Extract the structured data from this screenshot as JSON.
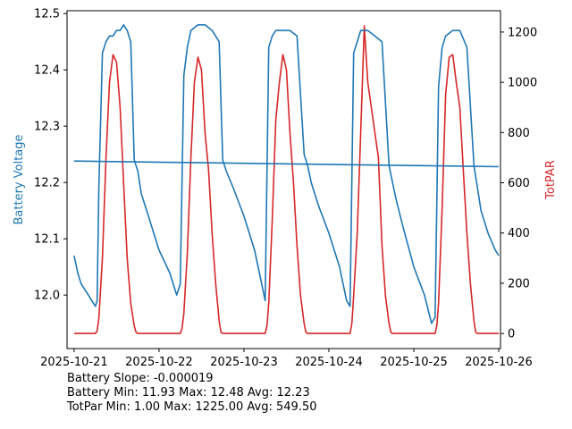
{
  "chart_data": {
    "type": "line",
    "x_range": [
      "2025-10-20T22:00",
      "2025-10-26T00:30"
    ],
    "x_ticks": [
      "2025-10-21",
      "2025-10-22",
      "2025-10-23",
      "2025-10-24",
      "2025-10-25",
      "2025-10-26"
    ],
    "left_axis": {
      "label": "Battery Voltage",
      "color": "#1f77b4",
      "ylim": [
        11.905,
        12.505
      ],
      "ticks": [
        12.0,
        12.1,
        12.2,
        12.3,
        12.4,
        12.5
      ],
      "tick_labels": [
        "12.0",
        "12.1",
        "12.2",
        "12.3",
        "12.4",
        "12.5"
      ]
    },
    "right_axis": {
      "label": "TotPAR",
      "color": "#d62728",
      "ylim": [
        -60,
        1285
      ],
      "ticks": [
        0,
        200,
        400,
        600,
        800,
        1000,
        1200
      ],
      "tick_labels": [
        "0",
        "200",
        "400",
        "600",
        "800",
        "1000",
        "1200"
      ]
    },
    "series": [
      {
        "name": "Battery Voltage",
        "axis": "left",
        "color": "#1f77b4",
        "x": [
          "2025-10-21T00:00",
          "2025-10-21T01:00",
          "2025-10-21T02:00",
          "2025-10-21T03:00",
          "2025-10-21T04:00",
          "2025-10-21T05:00",
          "2025-10-21T06:00",
          "2025-10-21T06:30",
          "2025-10-21T07:00",
          "2025-10-21T08:00",
          "2025-10-21T09:00",
          "2025-10-21T10:00",
          "2025-10-21T11:00",
          "2025-10-21T12:00",
          "2025-10-21T13:00",
          "2025-10-21T14:00",
          "2025-10-21T15:00",
          "2025-10-21T16:00",
          "2025-10-21T17:00",
          "2025-10-21T18:00",
          "2025-10-21T19:00",
          "2025-10-21T21:00",
          "2025-10-22T00:00",
          "2025-10-22T03:00",
          "2025-10-22T05:00",
          "2025-10-22T06:00",
          "2025-10-22T07:00",
          "2025-10-22T08:00",
          "2025-10-22T09:00",
          "2025-10-22T11:00",
          "2025-10-22T13:00",
          "2025-10-22T15:00",
          "2025-10-22T17:00",
          "2025-10-22T18:00",
          "2025-10-22T19:00",
          "2025-10-22T21:00",
          "2025-10-23T00:00",
          "2025-10-23T03:00",
          "2025-10-23T05:00",
          "2025-10-23T06:00",
          "2025-10-23T07:00",
          "2025-10-23T08:00",
          "2025-10-23T09:00",
          "2025-10-23T11:00",
          "2025-10-23T13:00",
          "2025-10-23T15:00",
          "2025-10-23T17:00",
          "2025-10-23T18:00",
          "2025-10-23T19:00",
          "2025-10-23T21:00",
          "2025-10-24T00:00",
          "2025-10-24T03:00",
          "2025-10-24T05:00",
          "2025-10-24T06:00",
          "2025-10-24T07:00",
          "2025-10-24T08:00",
          "2025-10-24T09:00",
          "2025-10-24T11:00",
          "2025-10-24T13:00",
          "2025-10-24T15:00",
          "2025-10-24T17:00",
          "2025-10-24T18:00",
          "2025-10-24T19:00",
          "2025-10-24T21:00",
          "2025-10-25T00:00",
          "2025-10-25T03:00",
          "2025-10-25T05:00",
          "2025-10-25T06:00",
          "2025-10-25T07:00",
          "2025-10-25T08:00",
          "2025-10-25T09:00",
          "2025-10-25T11:00",
          "2025-10-25T13:00",
          "2025-10-25T15:00",
          "2025-10-25T17:00",
          "2025-10-25T18:00",
          "2025-10-25T19:00",
          "2025-10-25T21:00",
          "2025-10-25T23:00",
          "2025-10-26T00:00"
        ],
        "values": [
          12.07,
          12.04,
          12.02,
          12.01,
          12.0,
          11.99,
          11.98,
          11.99,
          12.19,
          12.43,
          12.45,
          12.46,
          12.46,
          12.47,
          12.47,
          12.48,
          12.47,
          12.45,
          12.24,
          12.22,
          12.18,
          12.14,
          12.08,
          12.04,
          12.0,
          12.02,
          12.39,
          12.44,
          12.47,
          12.48,
          12.48,
          12.47,
          12.45,
          12.24,
          12.22,
          12.19,
          12.14,
          12.08,
          12.02,
          11.99,
          12.44,
          12.46,
          12.47,
          12.47,
          12.47,
          12.46,
          12.25,
          12.23,
          12.2,
          12.16,
          12.11,
          12.05,
          11.99,
          11.98,
          12.43,
          12.45,
          12.47,
          12.47,
          12.46,
          12.45,
          12.23,
          12.2,
          12.17,
          12.12,
          12.05,
          12.0,
          11.95,
          11.96,
          12.37,
          12.44,
          12.46,
          12.47,
          12.47,
          12.44,
          12.23,
          12.19,
          12.15,
          12.11,
          12.08,
          12.07
        ]
      },
      {
        "name": "Battery Trend",
        "axis": "left",
        "color": "#1f77b4",
        "x": [
          "2025-10-21T00:00",
          "2025-10-26T00:00"
        ],
        "values": [
          12.238,
          12.228
        ]
      },
      {
        "name": "TotPAR",
        "axis": "right",
        "color": "#d62728",
        "x": [
          "2025-10-21T00:00",
          "2025-10-21T06:00",
          "2025-10-21T06:30",
          "2025-10-21T07:00",
          "2025-10-21T08:00",
          "2025-10-21T09:00",
          "2025-10-21T10:00",
          "2025-10-21T11:00",
          "2025-10-21T12:00",
          "2025-10-21T13:00",
          "2025-10-21T14:00",
          "2025-10-21T15:00",
          "2025-10-21T16:00",
          "2025-10-21T17:00",
          "2025-10-21T17:30",
          "2025-10-21T18:00",
          "2025-10-22T06:00",
          "2025-10-22T06:30",
          "2025-10-22T07:00",
          "2025-10-22T08:00",
          "2025-10-22T09:00",
          "2025-10-22T10:00",
          "2025-10-22T11:00",
          "2025-10-22T12:00",
          "2025-10-22T13:00",
          "2025-10-22T14:00",
          "2025-10-22T15:00",
          "2025-10-22T16:00",
          "2025-10-22T17:00",
          "2025-10-22T17:30",
          "2025-10-22T18:00",
          "2025-10-23T06:00",
          "2025-10-23T06:30",
          "2025-10-23T07:00",
          "2025-10-23T08:00",
          "2025-10-23T09:00",
          "2025-10-23T10:00",
          "2025-10-23T11:00",
          "2025-10-23T12:00",
          "2025-10-23T13:00",
          "2025-10-23T14:00",
          "2025-10-23T15:00",
          "2025-10-23T16:00",
          "2025-10-23T17:00",
          "2025-10-23T17:30",
          "2025-10-23T18:00",
          "2025-10-24T06:00",
          "2025-10-24T06:30",
          "2025-10-24T07:00",
          "2025-10-24T08:00",
          "2025-10-24T09:00",
          "2025-10-24T10:00",
          "2025-10-24T11:00",
          "2025-10-24T12:00",
          "2025-10-24T13:00",
          "2025-10-24T14:00",
          "2025-10-24T15:00",
          "2025-10-24T16:00",
          "2025-10-24T17:00",
          "2025-10-24T17:30",
          "2025-10-24T18:00",
          "2025-10-25T06:00",
          "2025-10-25T06:30",
          "2025-10-25T07:00",
          "2025-10-25T08:00",
          "2025-10-25T09:00",
          "2025-10-25T10:00",
          "2025-10-25T11:00",
          "2025-10-25T12:00",
          "2025-10-25T13:00",
          "2025-10-25T14:00",
          "2025-10-25T15:00",
          "2025-10-25T16:00",
          "2025-10-25T17:00",
          "2025-10-25T17:30",
          "2025-10-25T18:00",
          "2025-10-26T00:00"
        ],
        "values": [
          0,
          0,
          10,
          60,
          300,
          700,
          1000,
          1110,
          1080,
          900,
          600,
          300,
          120,
          30,
          5,
          0,
          0,
          20,
          80,
          320,
          700,
          1000,
          1100,
          1050,
          800,
          650,
          400,
          200,
          50,
          5,
          0,
          0,
          30,
          120,
          450,
          850,
          1000,
          1110,
          1050,
          800,
          600,
          350,
          150,
          40,
          5,
          0,
          0,
          40,
          150,
          400,
          800,
          1225,
          1000,
          900,
          800,
          700,
          350,
          150,
          40,
          5,
          0,
          0,
          30,
          120,
          500,
          950,
          1100,
          1110,
          1000,
          900,
          650,
          400,
          200,
          50,
          5,
          0,
          0
        ]
      }
    ]
  },
  "stats": {
    "slope": "Battery Slope: -0.000019",
    "battery": "Battery Min: 11.93 Max: 12.48 Avg: 12.23",
    "totpar": "TotPar Min: 1.00 Max: 1225.00 Avg: 549.50"
  }
}
